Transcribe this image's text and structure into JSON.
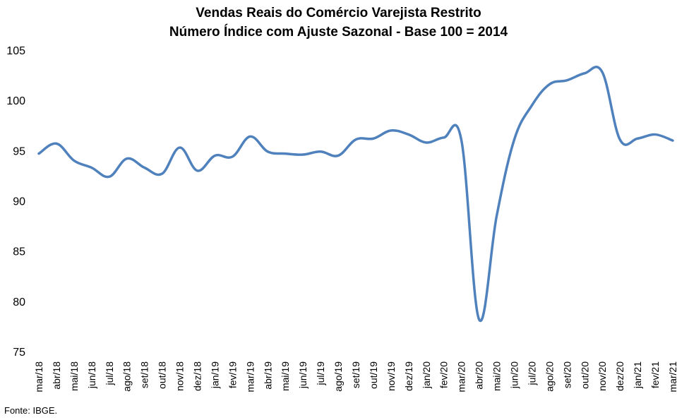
{
  "chart_data": {
    "type": "line",
    "title": "Vendas Reais do Comércio Varejista Restrito",
    "subtitle": "Número Índice com Ajuste Sazonal - Base 100 = 2014",
    "xlabel": "",
    "ylabel": "",
    "ylim": [
      75,
      105
    ],
    "yticks": [
      75,
      80,
      85,
      90,
      95,
      100,
      105
    ],
    "grid": false,
    "legend": "none",
    "line_color": "#4F81BD",
    "categories": [
      "mar/18",
      "abr/18",
      "mai/18",
      "jun/18",
      "jul/18",
      "ago/18",
      "set/18",
      "out/18",
      "nov/18",
      "dez/18",
      "jan/19",
      "fev/19",
      "mar/19",
      "abr/19",
      "mai/19",
      "jun/19",
      "jul/19",
      "ago/19",
      "set/19",
      "out/19",
      "nov/19",
      "dez/19",
      "jan/20",
      "fev/20",
      "mar/20",
      "abr/20",
      "mai/20",
      "jun/20",
      "jul/20",
      "ago/20",
      "set/20",
      "out/20",
      "nov/20",
      "dez/20",
      "jan/21",
      "fev/21",
      "mar/21"
    ],
    "series": [
      {
        "values": [
          94.7,
          95.7,
          94.0,
          93.3,
          92.4,
          94.2,
          93.3,
          92.7,
          95.3,
          93.0,
          94.5,
          94.4,
          96.4,
          94.9,
          94.7,
          94.6,
          94.9,
          94.5,
          96.1,
          96.2,
          97.0,
          96.6,
          95.8,
          96.3,
          96.0,
          78.2,
          88.5,
          96.1,
          99.5,
          101.6,
          102.0,
          102.7,
          102.8,
          96.1,
          96.2,
          96.6,
          96.0
        ]
      }
    ]
  },
  "source": "Fonte: IBGE."
}
